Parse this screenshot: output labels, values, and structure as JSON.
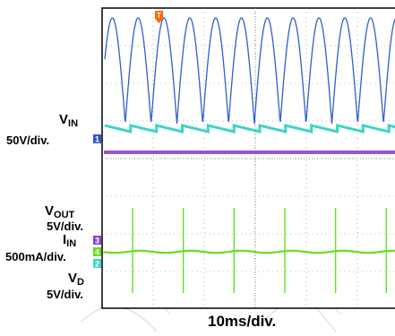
{
  "labels": {
    "vin_main": "V",
    "vin_sub": "IN",
    "vin_scale": "50V/div.",
    "vout_main": "V",
    "vout_sub": "OUT",
    "vout_scale": "5V/div.",
    "iin_main": "I",
    "iin_sub": "IN",
    "iin_scale": "500mA/div.",
    "vd_main": "V",
    "vd_sub": "D",
    "vd_scale": "5V/div.",
    "time_scale": "10ms/div."
  },
  "markers": {
    "trigger": "T",
    "ch1": "1",
    "ch2": "2",
    "ch3": "3",
    "ch4": "4"
  },
  "colors": {
    "ch1_vin": "#2f5fd0",
    "ch1_marker": "#3355cc",
    "ch2_vd": "#3fd4c4",
    "ch3_vout": "#8844cc",
    "ch4_iin": "#66dd22",
    "trigger": "#ff6a00",
    "graticule": "#7a7a7a",
    "watermark": "#dddddd"
  },
  "chart_data": {
    "type": "line",
    "title": "",
    "xlabel": "10ms/div.",
    "grid": true,
    "ch1_waveform": "full-wave rectified sine",
    "ch1_peaks_on_screen": 12,
    "ch4_spike_count": 6,
    "series": [
      {
        "name": "VIN",
        "scale": "50V/div."
      },
      {
        "name": "VOUT",
        "scale": "5V/div."
      },
      {
        "name": "IIN",
        "scale": "500mA/div."
      },
      {
        "name": "VD",
        "scale": "5V/div."
      }
    ]
  }
}
